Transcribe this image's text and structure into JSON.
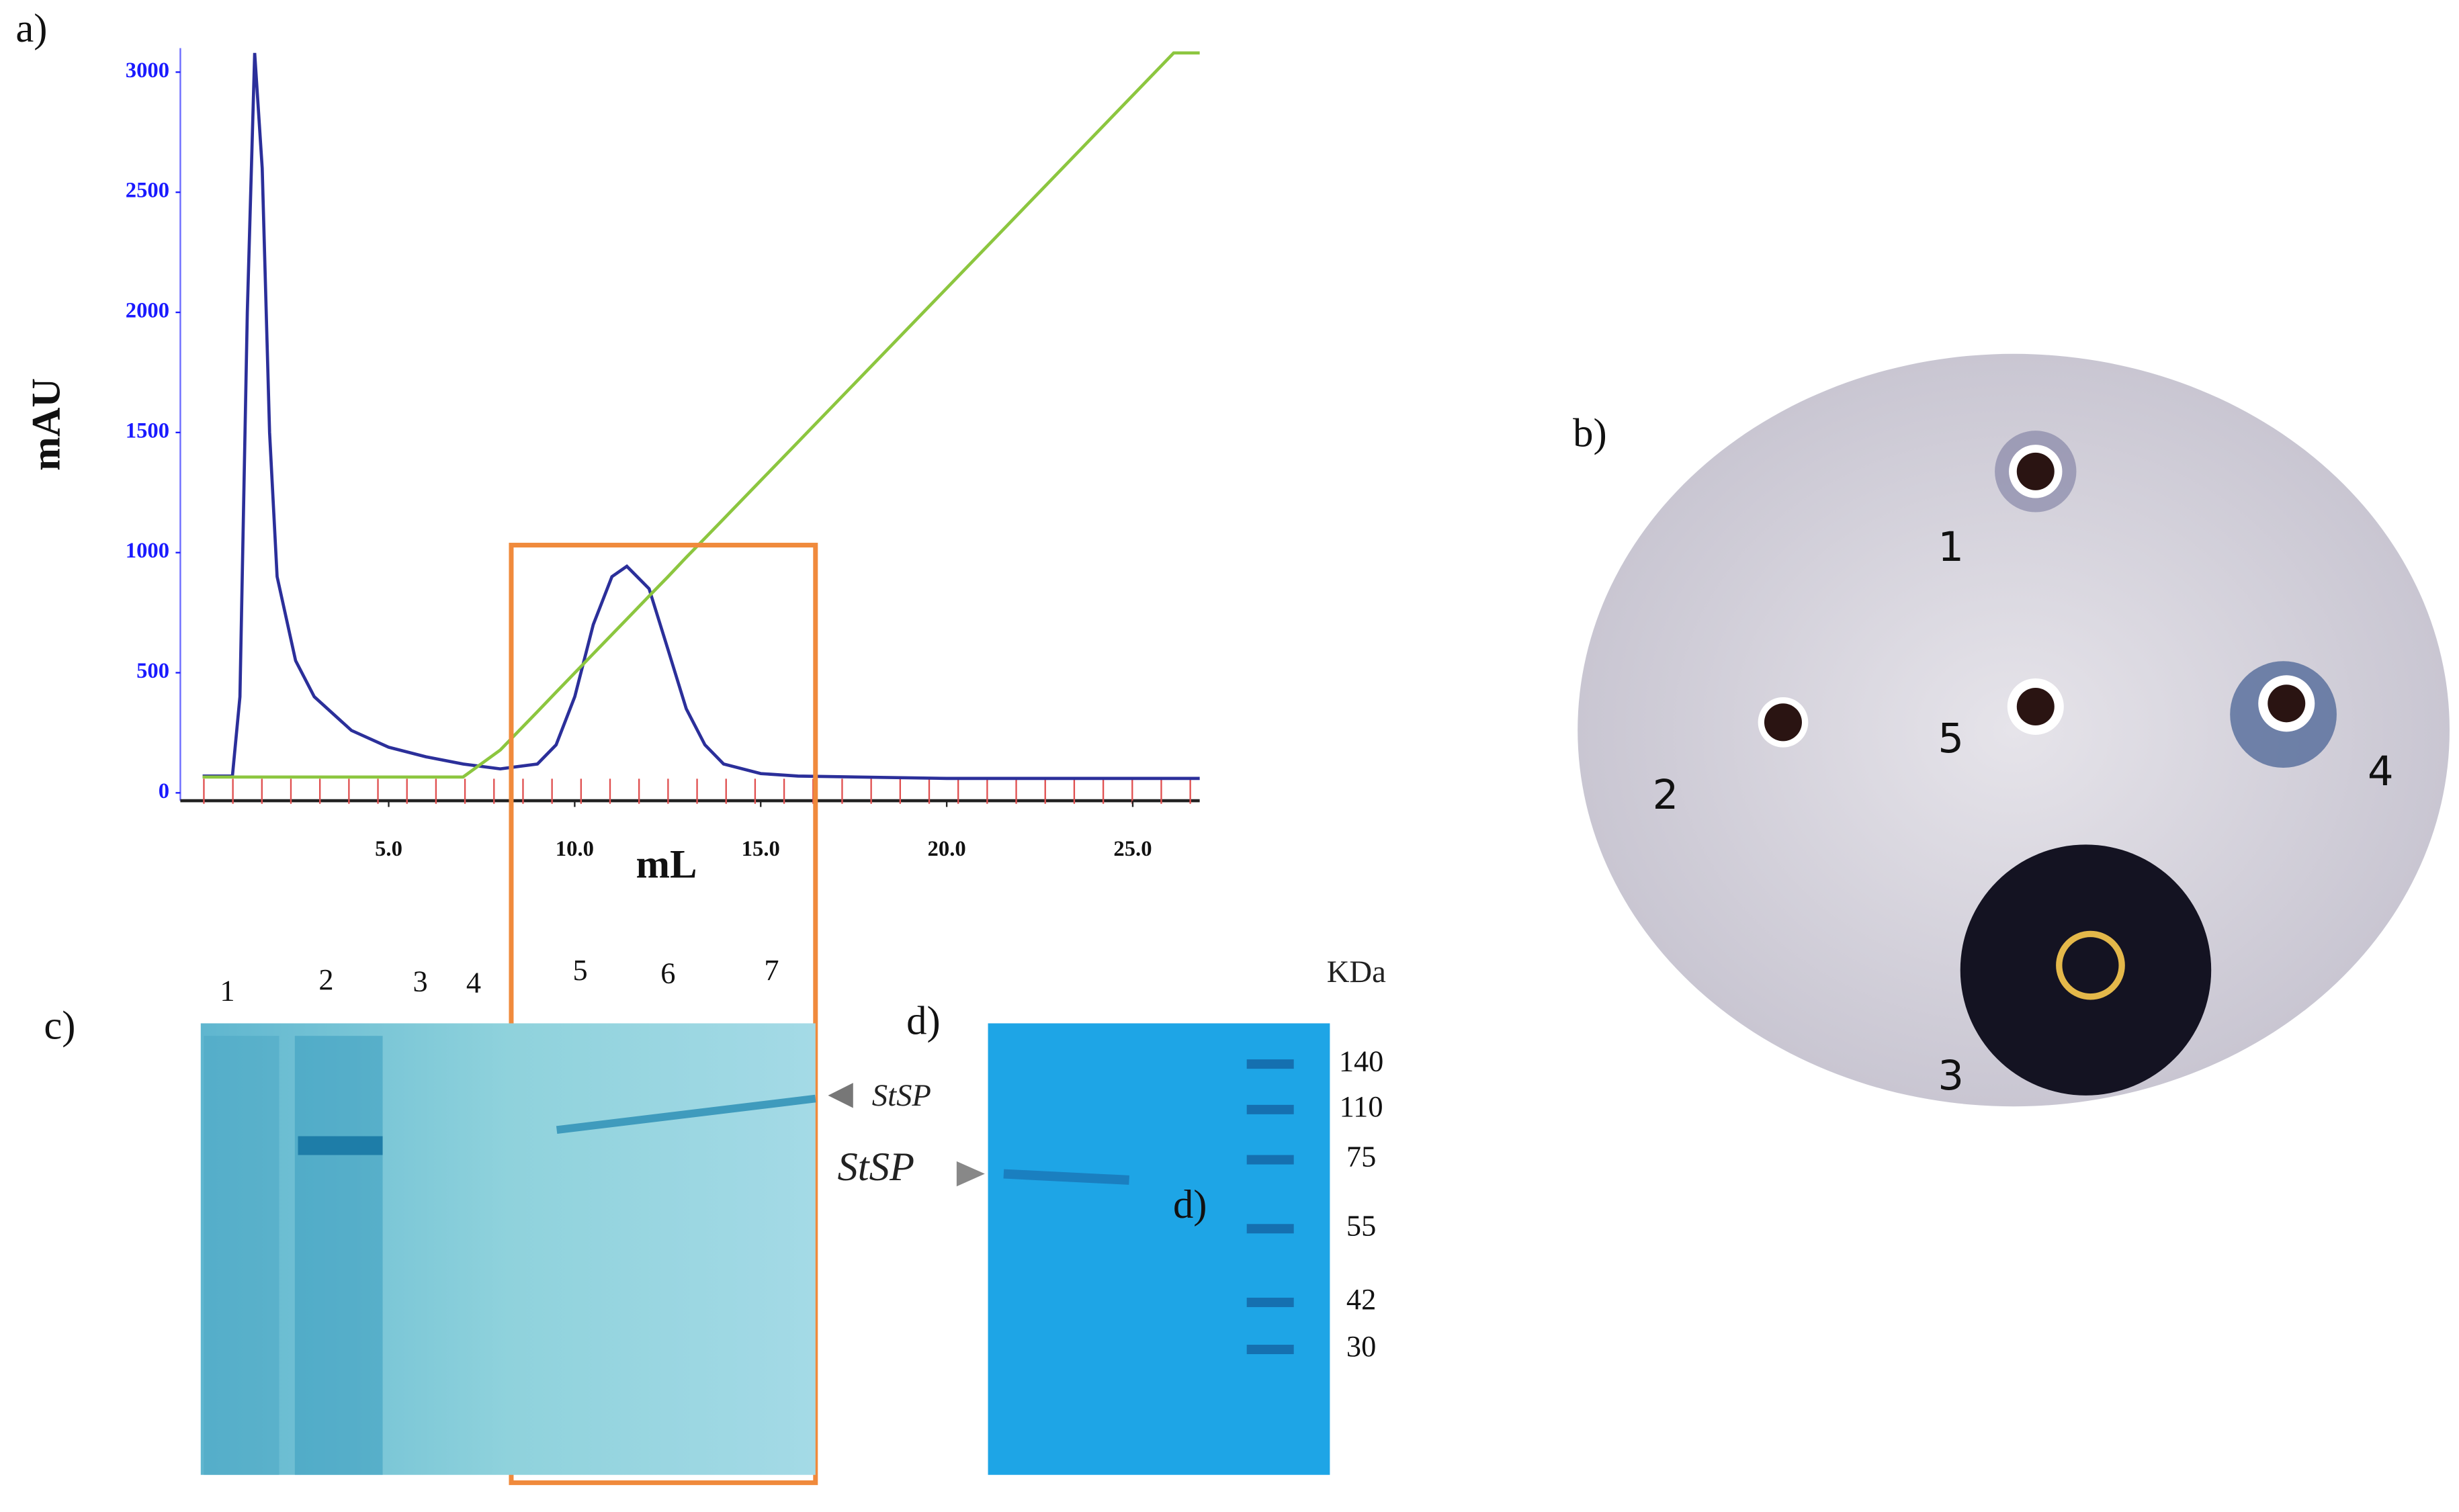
{
  "chart_data": {
    "type": "line",
    "panel_label": "a)",
    "ylabel": "mAU",
    "xlabel": "mL",
    "x": [
      0,
      0.5,
      0.8,
      1,
      1.2,
      1.4,
      1.6,
      1.8,
      2,
      2.5,
      3,
      4,
      5,
      6,
      7,
      8,
      9,
      9.5,
      10,
      10.5,
      11,
      11.4,
      12,
      12.5,
      13,
      13.5,
      14,
      15,
      16,
      20,
      26.1,
      26.8
    ],
    "series": [
      {
        "color": "#2b2f9a",
        "values": [
          70,
          70,
          70,
          400,
          2000,
          3080,
          2600,
          1500,
          900,
          550,
          400,
          260,
          190,
          150,
          120,
          100,
          120,
          200,
          400,
          700,
          900,
          943,
          850,
          600,
          350,
          200,
          120,
          80,
          70,
          60,
          60,
          60
        ]
      },
      {
        "color": "#8cc63f",
        "values": [
          66,
          66,
          66,
          66,
          66,
          66,
          66,
          66,
          66,
          66,
          66,
          66,
          66,
          66,
          66,
          178,
          338,
          419,
          499,
          579,
          659,
          723,
          819,
          899,
          980,
          1060,
          1140,
          1300,
          1460,
          2101,
          3080,
          3080
        ]
      }
    ],
    "xlim": [
      -0.6,
      26.8
    ],
    "ylim": [
      0,
      3100
    ],
    "xticks": [
      {
        "value": 5,
        "label": "5.0"
      },
      {
        "value": 10,
        "label": "10.0"
      },
      {
        "value": 15,
        "label": "15.0"
      },
      {
        "value": 20,
        "label": "20.0"
      },
      {
        "value": 25,
        "label": "25.0"
      }
    ],
    "yticks": [
      0,
      500,
      1000,
      1500,
      2000,
      2500,
      3000
    ],
    "tick_color": "#1a1aff"
  },
  "plate": {
    "label": "b)",
    "wells": [
      "1",
      "2",
      "3",
      "4",
      "5"
    ]
  },
  "gel_c": {
    "label": "c)",
    "lanes": [
      "1",
      "2",
      "3",
      "4",
      "5",
      "6",
      "7"
    ],
    "band_label": "StSP"
  },
  "gel_d": {
    "label": "d)",
    "inner_label": "d)",
    "band_label": "StSP",
    "unit": "KDa",
    "markers": [
      "140",
      "110",
      "75",
      "55",
      "42",
      "30"
    ]
  }
}
